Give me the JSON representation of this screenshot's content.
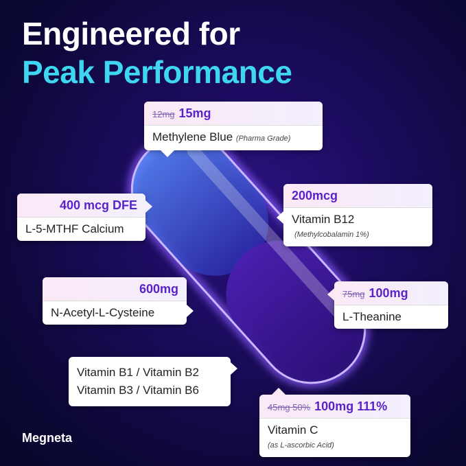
{
  "header": {
    "title_line1": "Engineered for",
    "title_line2": "Peak Performance"
  },
  "callouts": [
    {
      "old": "12mg",
      "dose": "15mg",
      "name": "Methylene Blue",
      "note": "(Pharma Grade)"
    },
    {
      "dose": "400 mcg DFE",
      "name": "L-5-MTHF Calcium"
    },
    {
      "dose": "200mcg",
      "name": "Vitamin B12",
      "note": "(Methylcobalamin 1%)"
    },
    {
      "dose": "600mg",
      "name": "N-Acetyl-L-Cysteine"
    },
    {
      "old": "75mg",
      "dose": "100mg",
      "name": "L-Theanine"
    },
    {
      "lines": [
        "Vitamin B1 / Vitamin B2",
        "Vitamin B3 / Vitamin B6"
      ]
    },
    {
      "old": "45mg 50%",
      "dose": "100mg 111%",
      "name": "Vitamin C",
      "note": "(as L-ascorbic Acid)"
    }
  ],
  "brand": "Megneta"
}
